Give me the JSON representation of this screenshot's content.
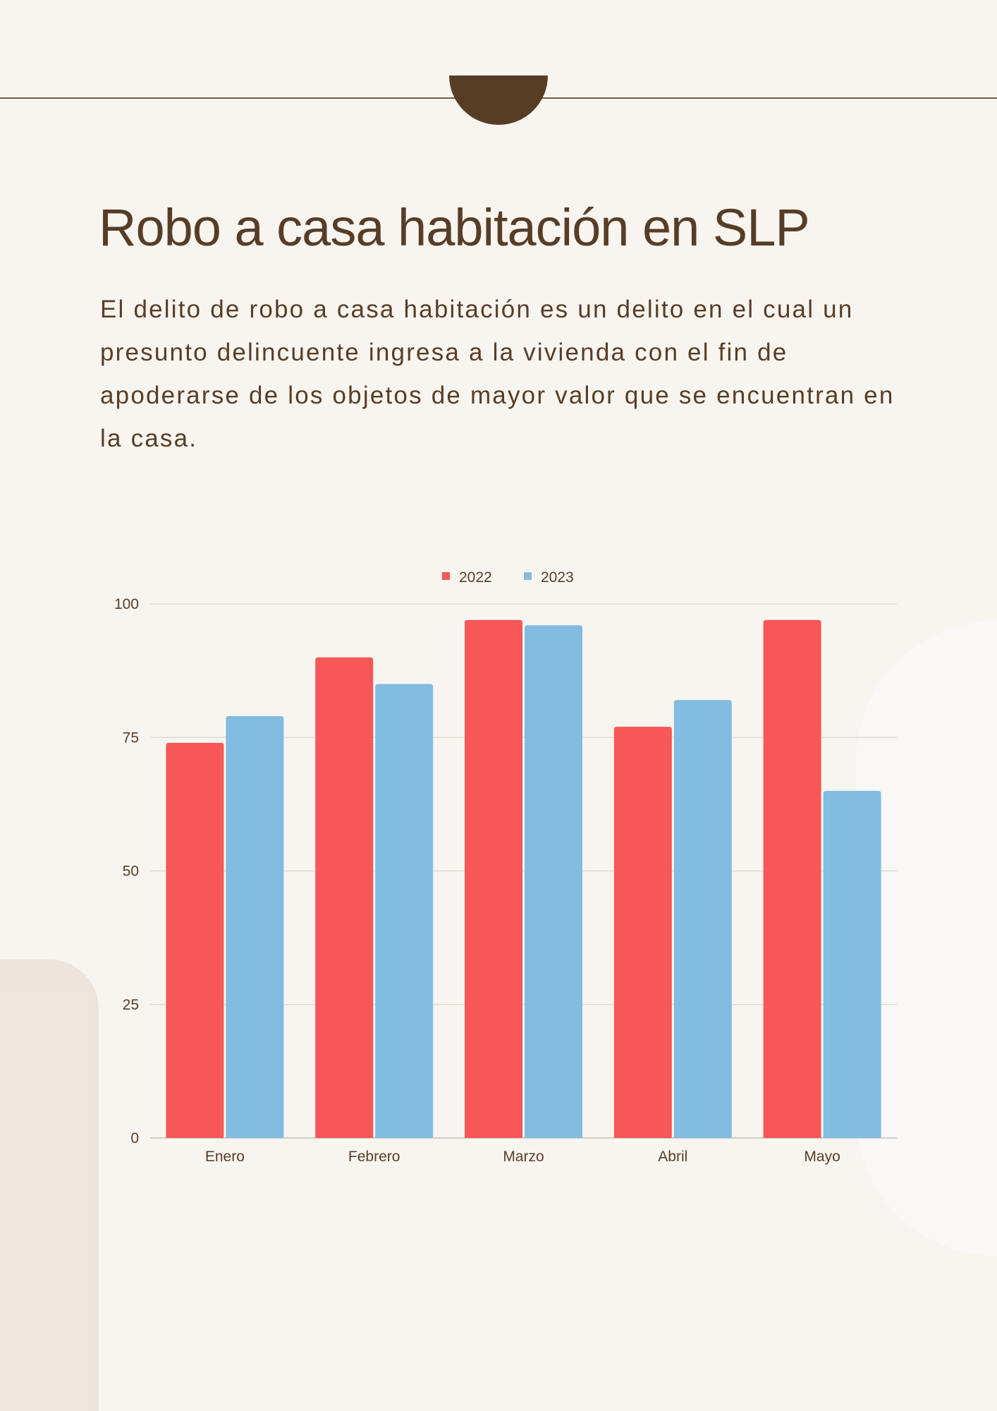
{
  "title": "Robo a casa habitación en SLP",
  "description": "El delito de robo a casa habitación es un delito en el cual un presunto delincuente ingresa a la vivienda con el fin de apoderarse de los objetos de mayor valor que se encuentran en la casa.",
  "colors": {
    "series_2022": "#f85757",
    "series_2023": "#82bce1",
    "text": "#583d26"
  },
  "chart_data": {
    "type": "bar",
    "categories": [
      "Enero",
      "Febrero",
      "Marzo",
      "Abril",
      "Mayo"
    ],
    "series": [
      {
        "name": "2022",
        "values": [
          74,
          90,
          97,
          77,
          97
        ]
      },
      {
        "name": "2023",
        "values": [
          79,
          85,
          96,
          82,
          65
        ]
      }
    ],
    "yticks": [
      "0",
      "25",
      "50",
      "75",
      "100"
    ],
    "ylim": [
      0,
      100
    ],
    "grid": true,
    "legend": "top-center"
  }
}
